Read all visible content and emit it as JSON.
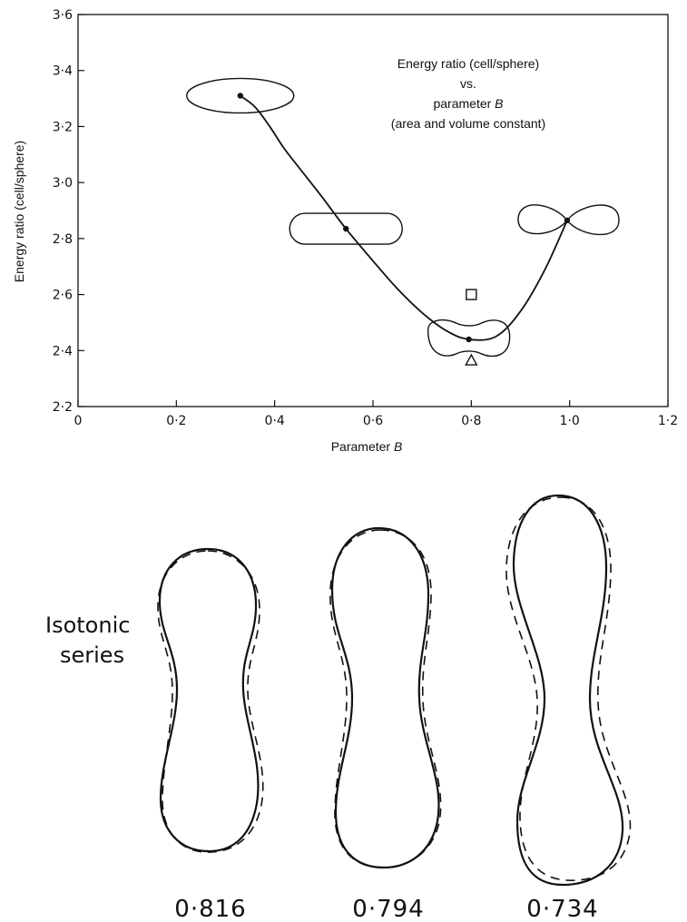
{
  "chart_data": {
    "type": "line",
    "xlabel": "Parameter B",
    "ylabel": "Energy ratio (cell/sphere)",
    "xlim": [
      0,
      1.2
    ],
    "ylim": [
      2.2,
      3.6
    ],
    "xticks": [
      0,
      0.2,
      0.4,
      0.6,
      0.8,
      1.0,
      1.2
    ],
    "xtick_labels": [
      "0",
      "0·2",
      "0·4",
      "0·6",
      "0·8",
      "1·0",
      "1·2"
    ],
    "yticks": [
      2.2,
      2.4,
      2.6,
      2.8,
      3.0,
      3.2,
      3.4,
      3.6
    ],
    "ytick_labels": [
      "2·2",
      "2·4",
      "2·6",
      "2·8",
      "3·0",
      "3·2",
      "3·4",
      "3·6"
    ],
    "grid": false,
    "annotation": [
      "Energy ratio (cell/sphere)",
      "vs.",
      "parameter B",
      "(area and volume constant)"
    ],
    "series": [
      {
        "points": [
          {
            "x": 0.33,
            "y": 3.31
          },
          {
            "x": 0.545,
            "y": 2.835
          },
          {
            "x": 0.795,
            "y": 2.44
          },
          {
            "x": 0.995,
            "y": 2.865
          }
        ],
        "curve": [
          {
            "x": 0.33,
            "y": 3.31
          },
          {
            "x": 0.36,
            "y": 3.27
          },
          {
            "x": 0.39,
            "y": 3.2
          },
          {
            "x": 0.42,
            "y": 3.12
          },
          {
            "x": 0.46,
            "y": 3.03
          },
          {
            "x": 0.5,
            "y": 2.94
          },
          {
            "x": 0.545,
            "y": 2.835
          },
          {
            "x": 0.6,
            "y": 2.72
          },
          {
            "x": 0.65,
            "y": 2.62
          },
          {
            "x": 0.7,
            "y": 2.535
          },
          {
            "x": 0.75,
            "y": 2.47
          },
          {
            "x": 0.795,
            "y": 2.44
          },
          {
            "x": 0.85,
            "y": 2.45
          },
          {
            "x": 0.9,
            "y": 2.54
          },
          {
            "x": 0.95,
            "y": 2.69
          },
          {
            "x": 0.995,
            "y": 2.865
          }
        ]
      }
    ],
    "markers": [
      {
        "shape": "square",
        "x": 0.8,
        "y": 2.6
      },
      {
        "shape": "triangle",
        "x": 0.8,
        "y": 2.365
      }
    ],
    "inset_shapes": [
      {
        "shape": "ellipse",
        "x": 0.33,
        "y": 3.31
      },
      {
        "shape": "capsule",
        "x": 0.545,
        "y": 2.835
      },
      {
        "shape": "peanut",
        "x": 0.795,
        "y": 2.44
      },
      {
        "shape": "figure-eight",
        "x": 0.995,
        "y": 2.865
      }
    ]
  },
  "lower_panel": {
    "series_label": [
      "Isotonic",
      "series"
    ],
    "cells": [
      {
        "value": "0·816"
      },
      {
        "value": "0·794"
      },
      {
        "value": "0·734"
      }
    ]
  }
}
